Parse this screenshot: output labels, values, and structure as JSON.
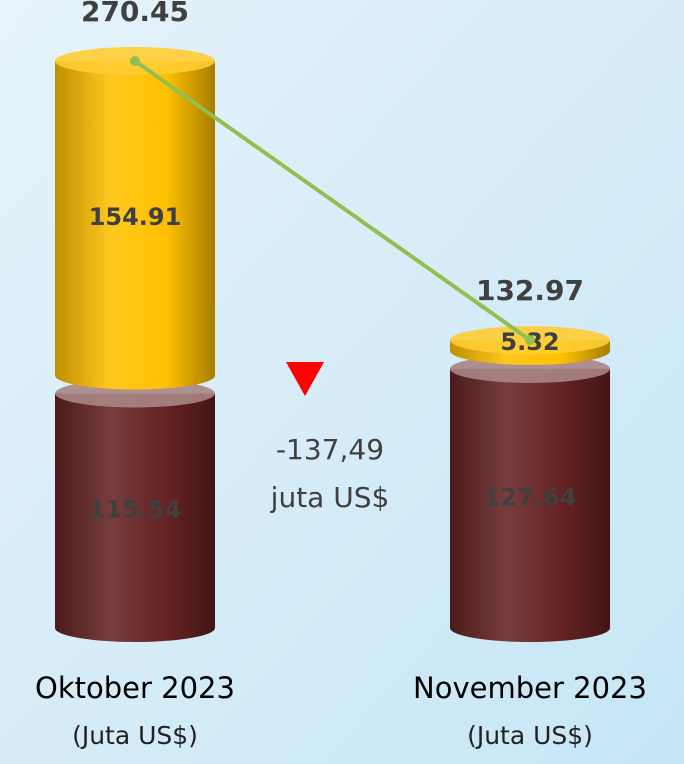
{
  "chart_data": {
    "type": "stacked-cylinder",
    "categories": [
      "Oktober 2023",
      "November 2023"
    ],
    "unit_label": "(Juta US$)",
    "series": [
      {
        "color": "#652222",
        "values": [
          115.54,
          127.64
        ]
      },
      {
        "color": "#ffc000",
        "values": [
          154.91,
          5.32
        ]
      }
    ],
    "line": {
      "color": "#92c050",
      "values": [
        270.45,
        132.97
      ]
    },
    "annotation": [
      "-137,49",
      "juta US$"
    ],
    "annotation_color": "#ff0000"
  }
}
